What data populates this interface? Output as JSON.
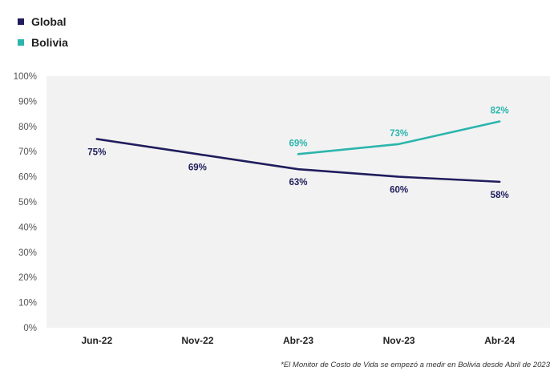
{
  "legend": [
    {
      "label": "Global",
      "color": "#1f1d5c"
    },
    {
      "label": "Bolivia",
      "color": "#2bb5ad"
    }
  ],
  "footnote": "*El Monitor de Costo de Vida se empezó a medir en Bolivia desde Abril de 2023",
  "chart_data": {
    "type": "line",
    "categories": [
      "Jun-22",
      "Nov-22",
      "Abr-23",
      "Nov-23",
      "Abr-24"
    ],
    "ylim": [
      0,
      100
    ],
    "yticks": [
      0,
      10,
      20,
      30,
      40,
      50,
      60,
      70,
      80,
      90,
      100
    ],
    "ytick_labels": [
      "0%",
      "10%",
      "20%",
      "30%",
      "40%",
      "50%",
      "60%",
      "70%",
      "80%",
      "90%",
      "100%"
    ],
    "grid": false,
    "legend_position": "top-left",
    "plot_background": "#f2f2f2",
    "series": [
      {
        "name": "Global",
        "color": "#1f1d5c",
        "values": [
          75,
          69,
          63,
          60,
          58
        ],
        "labels": [
          "75%",
          "69%",
          "63%",
          "60%",
          "58%"
        ],
        "label_position": "below"
      },
      {
        "name": "Bolivia",
        "color": "#2bb5ad",
        "values": [
          null,
          null,
          69,
          73,
          82
        ],
        "labels": [
          null,
          null,
          "69%",
          "73%",
          "82%"
        ],
        "label_position": "above"
      }
    ]
  }
}
